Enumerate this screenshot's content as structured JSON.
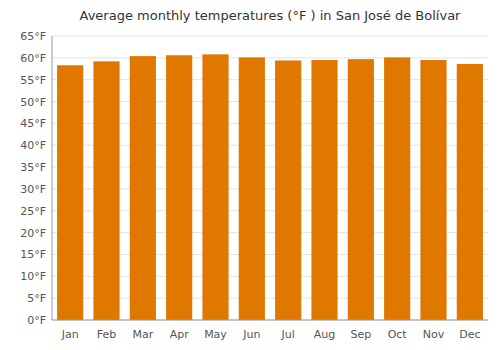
{
  "chart_data": {
    "type": "bar",
    "title": "Average monthly temperatures (°F ) in San José de Bolívar",
    "categories": [
      "Jan",
      "Feb",
      "Mar",
      "Apr",
      "May",
      "Jun",
      "Jul",
      "Aug",
      "Sep",
      "Oct",
      "Nov",
      "Dec"
    ],
    "values": [
      58.3,
      59.2,
      60.4,
      60.6,
      60.8,
      60.1,
      59.4,
      59.5,
      59.7,
      60.1,
      59.5,
      58.6
    ],
    "color": "#E07800",
    "ylim": [
      0,
      65
    ],
    "yticks": [
      {
        "value": 0,
        "label": "0°F"
      },
      {
        "value": 5,
        "label": "5°F"
      },
      {
        "value": 10,
        "label": "10°F"
      },
      {
        "value": 15,
        "label": "15°F"
      },
      {
        "value": 20,
        "label": "20°F"
      },
      {
        "value": 25,
        "label": "25°F"
      },
      {
        "value": 30,
        "label": "30°F"
      },
      {
        "value": 35,
        "label": "35°F"
      },
      {
        "value": 40,
        "label": "40°F"
      },
      {
        "value": 45,
        "label": "45°F"
      },
      {
        "value": 50,
        "label": "50°F"
      },
      {
        "value": 55,
        "label": "55°F"
      },
      {
        "value": 60,
        "label": "60°F"
      },
      {
        "value": 65,
        "label": "65°F"
      }
    ],
    "grid": true
  }
}
